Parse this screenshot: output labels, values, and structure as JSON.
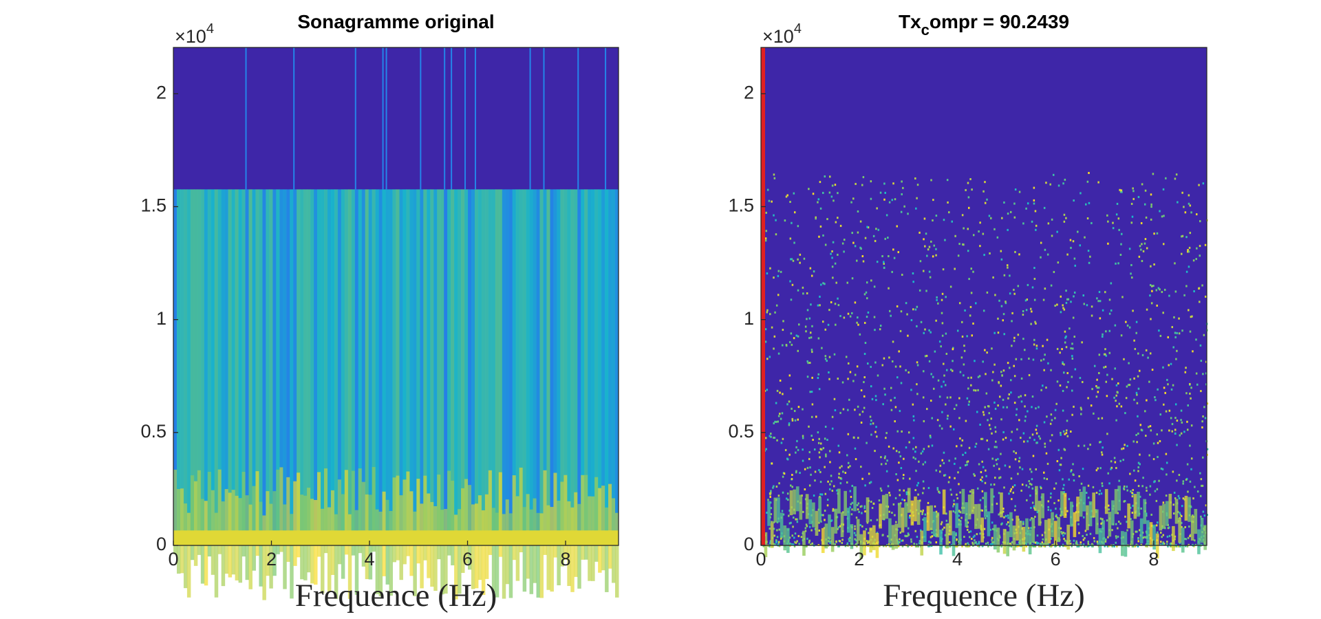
{
  "chart_data": [
    {
      "type": "spectrogram",
      "title": [
        "Sonagramme original"
      ],
      "xlabel": "Frequence (Hz)",
      "y_multiplier": [
        "×10",
        "4"
      ],
      "xlim": [
        0,
        9.08
      ],
      "xticks": [
        0,
        2,
        4,
        6,
        8
      ],
      "ylim": [
        0,
        22050
      ],
      "yticks": [
        {
          "value": 0,
          "label": "0"
        },
        {
          "value": 5000,
          "label": "0.5"
        },
        {
          "value": 10000,
          "label": "1"
        },
        {
          "value": 15000,
          "label": "1.5"
        },
        {
          "value": 20000,
          "label": "2"
        }
      ]
    },
    {
      "type": "spectrogram",
      "title": [
        "Tx",
        "c",
        "ompr = 90.2439"
      ],
      "xlabel": "Frequence (Hz)",
      "y_multiplier": [
        "×10",
        "4"
      ],
      "xlim": [
        0,
        9.08
      ],
      "xticks": [
        0,
        2,
        4,
        6,
        8
      ],
      "ylim": [
        0,
        22050
      ],
      "yticks": [
        {
          "value": 0,
          "label": "0"
        },
        {
          "value": 5000,
          "label": "0.5"
        },
        {
          "value": 10000,
          "label": "1"
        },
        {
          "value": 15000,
          "label": "1.5"
        },
        {
          "value": 20000,
          "label": "2"
        }
      ]
    }
  ]
}
